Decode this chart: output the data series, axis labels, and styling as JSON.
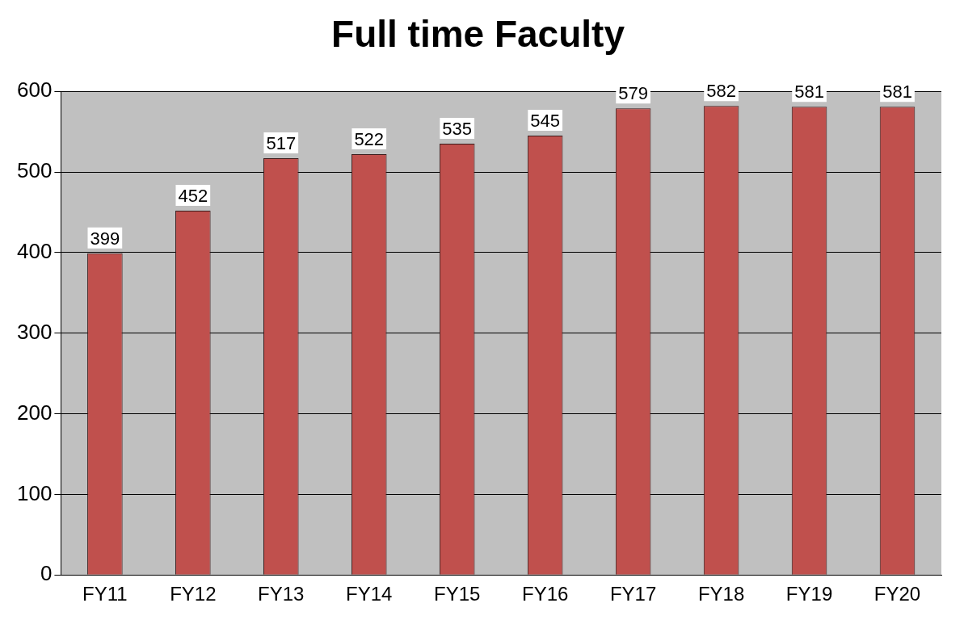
{
  "chart_data": {
    "type": "bar",
    "title": "Full time Faculty",
    "categories": [
      "FY11",
      "FY12",
      "FY13",
      "FY14",
      "FY15",
      "FY16",
      "FY17",
      "FY18",
      "FY19",
      "FY20"
    ],
    "values": [
      399,
      452,
      517,
      522,
      535,
      545,
      579,
      582,
      581,
      581
    ],
    "color": "#c0504d",
    "ylim": [
      0,
      600
    ],
    "yticks": [
      0,
      100,
      200,
      300,
      400,
      500,
      600
    ],
    "grid": "y",
    "data_labels": true,
    "legend": false
  }
}
